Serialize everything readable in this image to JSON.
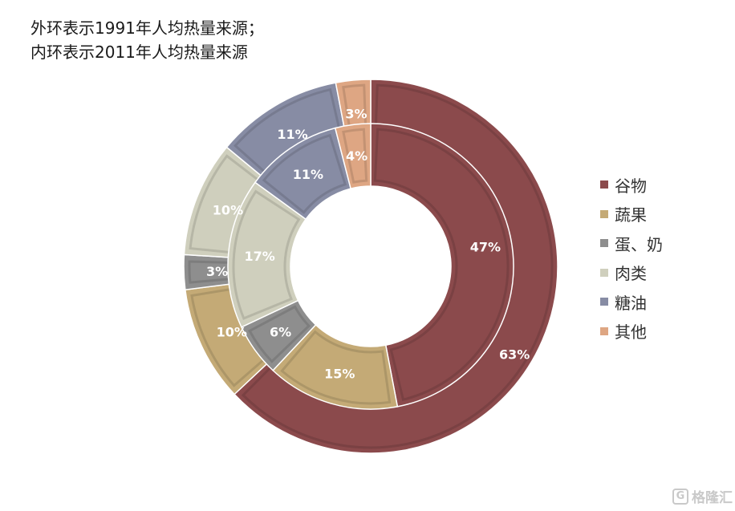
{
  "title_lines": [
    "外环表示1991年人均热量来源；",
    "内环表示2011年人均热量来源"
  ],
  "chart_data": {
    "type": "pie",
    "subtype": "donut",
    "categories": [
      "谷物",
      "蔬果",
      "蛋、奶",
      "肉类",
      "糖油",
      "其他"
    ],
    "colors": [
      "#8b4a4c",
      "#c4aa76",
      "#8e8e8e",
      "#cfcfbd",
      "#878ca4",
      "#dea683"
    ],
    "series": [
      {
        "ring": "outer",
        "values": [
          63,
          10,
          3,
          10,
          11,
          3
        ]
      },
      {
        "ring": "inner",
        "values": [
          47,
          15,
          6,
          17,
          11,
          4
        ]
      }
    ],
    "value_format": "percent",
    "legend": "right"
  },
  "watermark": {
    "icon": "G",
    "text": "格隆汇"
  }
}
